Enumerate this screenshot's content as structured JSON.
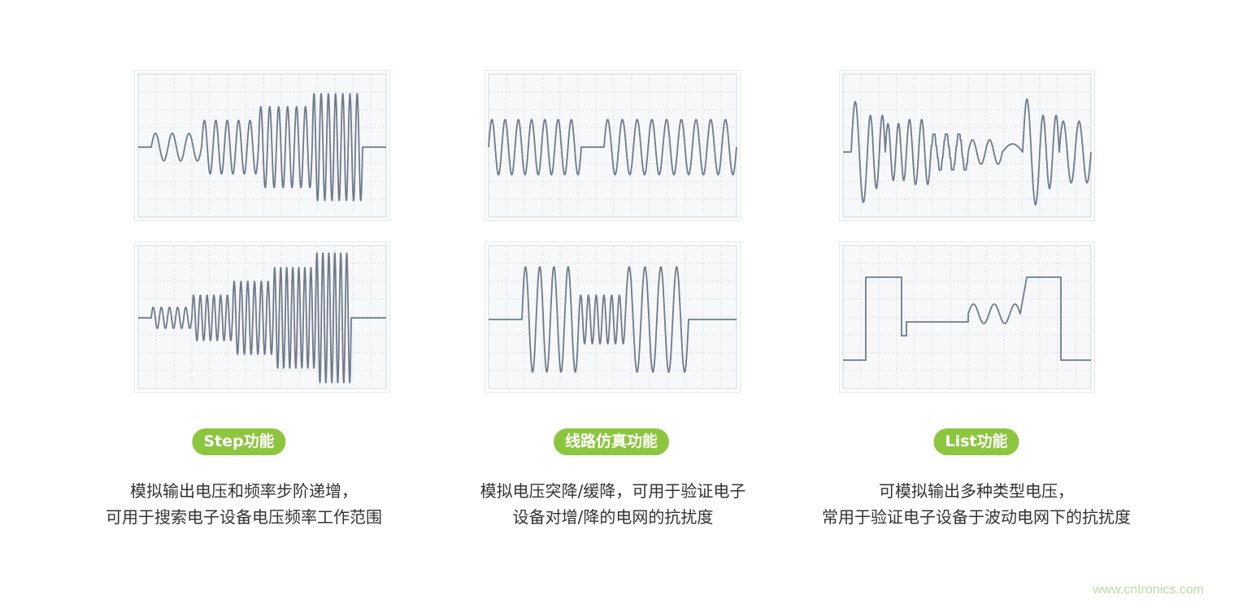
{
  "colors": {
    "waveform": "#6f7a8c",
    "grid": "#dfe3e7",
    "pill": "#8cc63f",
    "text": "#333333",
    "watermark": "#b9dca4"
  },
  "sections": [
    {
      "label": "Step功能",
      "lines": [
        "模拟输出电压和频率步阶递增，",
        "可用于搜索电子设备电压频率工作范围"
      ]
    },
    {
      "label": "线路仿真功能",
      "lines": [
        "模拟电压突降/缓降，可用于验证电子",
        "设备对增/降的电网的抗扰度"
      ]
    },
    {
      "label": "List功能",
      "lines": [
        "可模拟输出多种类型电压，",
        "常用于验证电子设备于波动电网下的抗扰度"
      ]
    }
  ],
  "watermark": "www.cntronics.com"
}
